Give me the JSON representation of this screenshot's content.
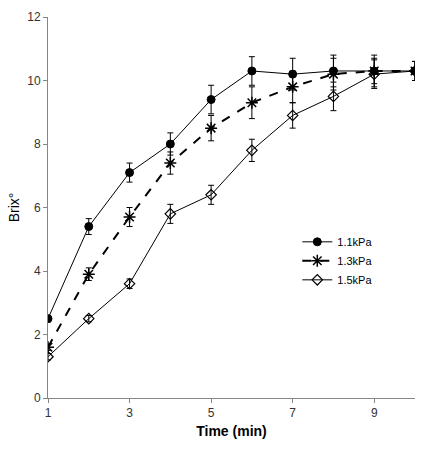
{
  "chart_data": {
    "type": "line",
    "x_label": "Time (min)",
    "y_label": "Brix°",
    "x": [
      1,
      2,
      3,
      4,
      5,
      6,
      7,
      8,
      9,
      10
    ],
    "xlim": [
      1,
      10
    ],
    "xticks": [
      1,
      3,
      5,
      7,
      9
    ],
    "ylim": [
      0,
      12
    ],
    "yticks": [
      0,
      2,
      4,
      6,
      8,
      10,
      12
    ],
    "grid": false,
    "legend": "right",
    "series": [
      {
        "name": "1.1kPa",
        "color": "#000000",
        "marker": "circle",
        "line_style": "solid",
        "values": [
          2.5,
          5.4,
          7.1,
          8.0,
          9.4,
          10.3,
          10.2,
          10.3,
          10.3,
          10.3
        ],
        "errors": [
          0.1,
          0.25,
          0.3,
          0.35,
          0.45,
          0.45,
          0.5,
          0.5,
          0.5,
          0.3
        ]
      },
      {
        "name": "1.3kPa",
        "color": "#000000",
        "marker": "asterisk",
        "line_style": "dash",
        "values": [
          1.6,
          3.9,
          5.7,
          7.4,
          8.5,
          9.3,
          9.8,
          10.2,
          10.3,
          10.3
        ],
        "errors": [
          0.1,
          0.2,
          0.3,
          0.35,
          0.4,
          0.5,
          0.5,
          0.5,
          0.4,
          0.3
        ]
      },
      {
        "name": "1.5kPa",
        "color": "#000000",
        "marker": "diamond-open",
        "line_style": "solid",
        "values": [
          1.3,
          2.5,
          3.6,
          5.8,
          6.4,
          7.8,
          8.9,
          9.5,
          10.2,
          10.3
        ],
        "errors": [
          0.1,
          0.1,
          0.15,
          0.3,
          0.3,
          0.35,
          0.4,
          0.45,
          0.45,
          0.3
        ]
      }
    ]
  }
}
